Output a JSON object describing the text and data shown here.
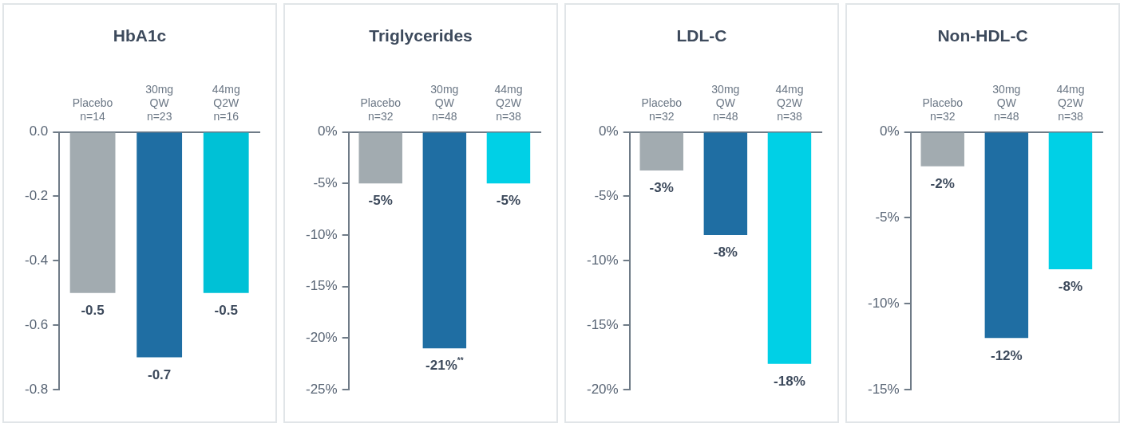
{
  "chart_data": [
    {
      "type": "bar",
      "title": "HbA1c",
      "categories": [
        "Placebo\nn=14",
        "30mg\nQW\nn=23",
        "44mg\nQ2W\nn=16"
      ],
      "values": [
        -0.5,
        -0.7,
        -0.5
      ],
      "colors": [
        "#a2abb0",
        "#1f6ea3",
        "#00c1d6"
      ],
      "ylim": [
        -0.8,
        0
      ],
      "yticks": [
        {
          "value": 0,
          "label": "0.0"
        },
        {
          "value": -0.2,
          "label": "-0.2"
        },
        {
          "value": -0.4,
          "label": "-0.4"
        },
        {
          "value": -0.6,
          "label": "-0.6"
        },
        {
          "value": -0.8,
          "label": "-0.8"
        }
      ],
      "value_labels": [
        "-0.5",
        "-0.7",
        "-0.5"
      ],
      "grid": false,
      "legend": false
    },
    {
      "type": "bar",
      "title": "Triglycerides",
      "categories": [
        "Placebo\nn=32",
        "30mg\nQW\nn=48",
        "44mg\nQ2W\nn=38"
      ],
      "values": [
        -5,
        -21,
        -5
      ],
      "colors": [
        "#a2abb0",
        "#1f6ea3",
        "#00d0e6"
      ],
      "ylim": [
        -25,
        0
      ],
      "yticks": [
        {
          "value": 0,
          "label": "0%"
        },
        {
          "value": -5,
          "label": "-5%"
        },
        {
          "value": -10,
          "label": "-10%"
        },
        {
          "value": -15,
          "label": "-15%"
        },
        {
          "value": -20,
          "label": "-20%"
        },
        {
          "value": -25,
          "label": "-25%"
        }
      ],
      "value_labels": [
        "-5%",
        "-21%$^{**}$",
        "-5%"
      ],
      "grid": false,
      "legend": false
    },
    {
      "type": "bar",
      "title": "LDL-C",
      "categories": [
        "Placebo\nn=32",
        "30mg\nQW\nn=48",
        "44mg\nQ2W\nn=38"
      ],
      "values": [
        -3,
        -8,
        -18
      ],
      "colors": [
        "#a2abb0",
        "#1f6ea3",
        "#00d0e6"
      ],
      "ylim": [
        -20,
        0
      ],
      "yticks": [
        {
          "value": 0,
          "label": "0%"
        },
        {
          "value": -5,
          "label": "-5%"
        },
        {
          "value": -10,
          "label": "-10%"
        },
        {
          "value": -15,
          "label": "-15%"
        },
        {
          "value": -20,
          "label": "-20%"
        }
      ],
      "value_labels": [
        "-3%",
        "-8%",
        "-18%"
      ],
      "grid": false,
      "legend": false
    },
    {
      "type": "bar",
      "title": "Non-HDL-C",
      "categories": [
        "Placebo\nn=32",
        "30mg\nQW\nn=48",
        "44mg\nQ2W\nn=38"
      ],
      "values": [
        -2,
        -12,
        -8
      ],
      "colors": [
        "#a2abb0",
        "#1f6ea3",
        "#00d0e6"
      ],
      "ylim": [
        -15,
        0
      ],
      "yticks": [
        {
          "value": 0,
          "label": "0%"
        },
        {
          "value": -5,
          "label": "-5%"
        },
        {
          "value": -10,
          "label": "-10%"
        },
        {
          "value": -15,
          "label": "-15%"
        }
      ],
      "value_labels": [
        "-2%",
        "-12%",
        "-8%"
      ],
      "grid": false,
      "legend": false
    }
  ]
}
